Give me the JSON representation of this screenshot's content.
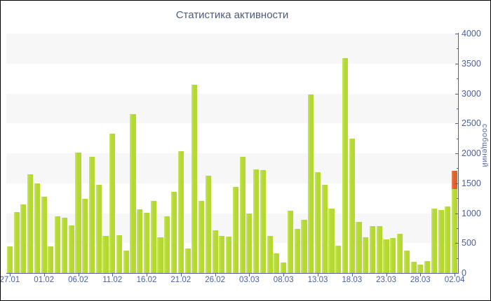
{
  "chart_data": {
    "type": "bar",
    "title": "Статистика активности",
    "ylabel": "сообщений",
    "ylim": [
      0,
      4000
    ],
    "y_major_step": 500,
    "y_minor_step": 250,
    "y_tick_labels": [
      "0",
      "500",
      "1000",
      "1500",
      "2000",
      "2500",
      "3000",
      "3500",
      "4000"
    ],
    "x_tick_labels": [
      "27.01",
      "01.02",
      "06.02",
      "11.02",
      "16.02",
      "21.02",
      "26.02",
      "03.03",
      "08.03",
      "13.03",
      "18.03",
      "23.03",
      "28.03",
      "02.04"
    ],
    "x_tick_every_n_bars": 5,
    "grid": "horizontal-bands-every-500",
    "legend_position": "none",
    "y_axis_position": "right",
    "values": [
      450,
      1020,
      1150,
      1650,
      1500,
      1270,
      440,
      950,
      930,
      800,
      2010,
      1240,
      1940,
      1470,
      615,
      2330,
      630,
      380,
      2660,
      1060,
      1010,
      1205,
      600,
      950,
      1360,
      2040,
      410,
      3150,
      1200,
      1630,
      710,
      620,
      610,
      1440,
      1940,
      990,
      1730,
      1720,
      615,
      330,
      175,
      1040,
      740,
      890,
      2980,
      1690,
      1480,
      1080,
      455,
      3590,
      2250,
      860,
      595,
      785,
      790,
      565,
      580,
      650,
      380,
      190,
      140,
      200,
      1080,
      1050,
      1110,
      1710
    ],
    "last_bar_segments": {
      "green_value": 1400,
      "orange_value": 310
    }
  },
  "colors": {
    "bar": "#b3d932",
    "bar_edge_light": "#cbe55e",
    "last_bar_top": "#e05f2b",
    "last_bar_top_light": "#ec8456",
    "band": "#f7f7f7",
    "axis_line": "#4a62a3",
    "tick_text": "#4b5ea2",
    "title_text": "#4d5a7d",
    "frame_border": "#000000",
    "background": "#ffffff"
  }
}
